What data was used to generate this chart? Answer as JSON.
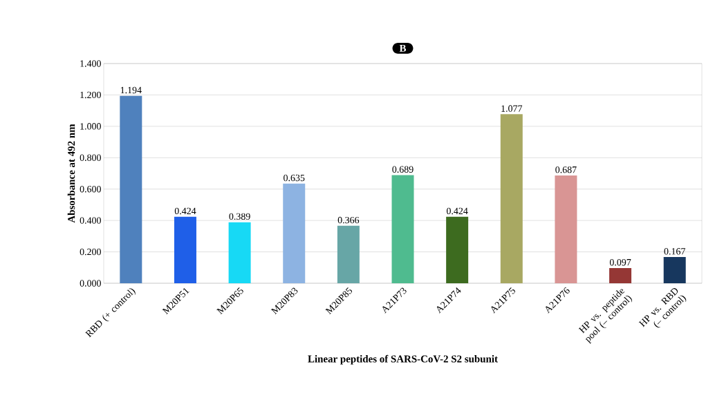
{
  "chart_data": {
    "type": "bar",
    "title": "B",
    "xlabel": "Linear peptides of SARS-CoV-2 S2 subunit",
    "ylabel": "Absorbance at 492 nm",
    "categories": [
      "RBD (+ control)",
      "M20P51",
      "M20P65",
      "M20P83",
      "M20P85",
      "A21P73",
      "A21P74",
      "A21P75",
      "A21P76",
      "HP vs. peptide pool (– control)",
      "HP vs. RBD (– control)"
    ],
    "values": [
      1.194,
      0.424,
      0.389,
      0.635,
      0.366,
      0.689,
      0.424,
      1.077,
      0.687,
      0.097,
      0.167
    ],
    "colors": [
      "#4f81bd",
      "#1f5fe8",
      "#17d9f5",
      "#8db3e2",
      "#67a6a6",
      "#4fbb8f",
      "#3d6b1f",
      "#a8a862",
      "#d99594",
      "#953735",
      "#17375e"
    ],
    "ylim": [
      0,
      1.4
    ],
    "yticks": [
      {
        "value": 0,
        "label": "0.000"
      },
      {
        "value": 0.2,
        "label": "0.200"
      },
      {
        "value": 0.4,
        "label": "0.400"
      },
      {
        "value": 0.6,
        "label": "0.600"
      },
      {
        "value": 0.8,
        "label": "0.800"
      },
      {
        "value": 1.0,
        "label": "1.000"
      },
      {
        "value": 1.2,
        "label": "1.200"
      },
      {
        "value": 1.4,
        "label": "1.400"
      }
    ],
    "grid": "y",
    "data_labels": true
  }
}
